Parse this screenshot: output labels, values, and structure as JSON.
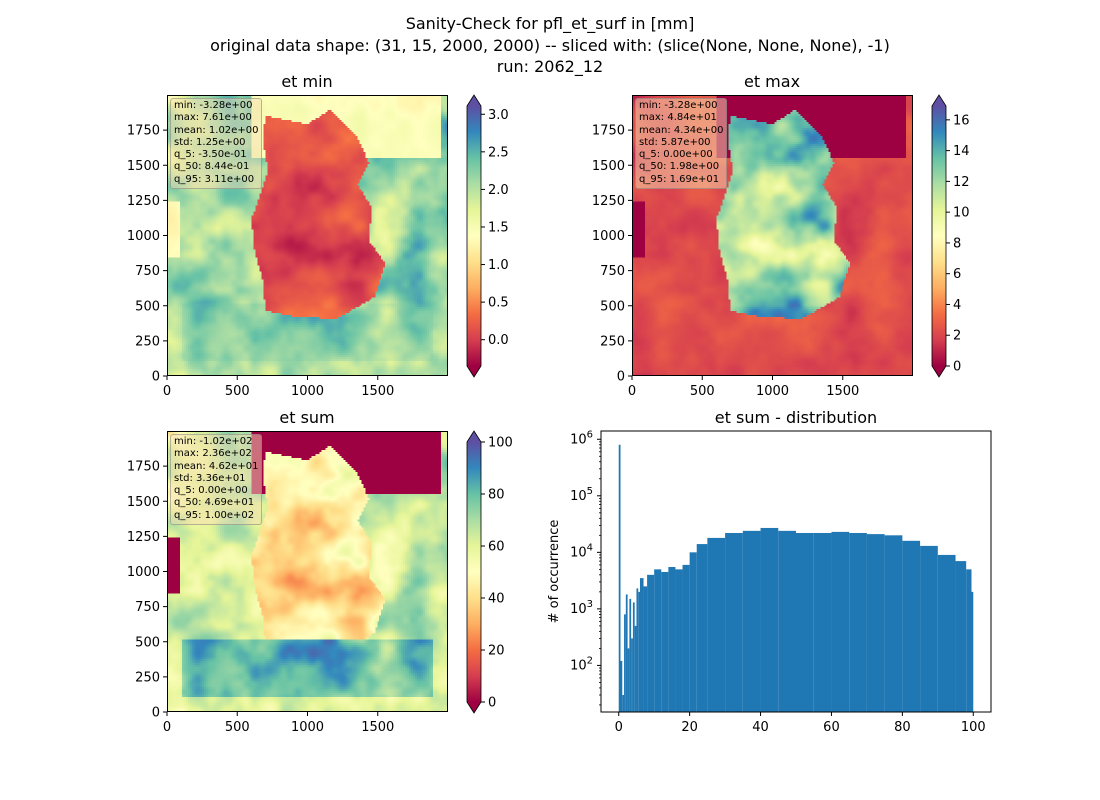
{
  "figure": {
    "title_lines": [
      "Sanity-Check for pfl_et_surf in [mm]",
      "original data shape: (31, 15, 2000, 2000) -- sliced with: (slice(None, None, None), -1)",
      "run: 2062_12"
    ]
  },
  "panels": [
    {
      "key": "et_min",
      "title": "et min",
      "stats": [
        "min: -3.28e+00",
        "max: 7.61e+00",
        "mean: 1.02e+00",
        "std: 1.25e+00",
        "q_5: -3.50e-01",
        "q_50: 8.44e-01",
        "q_95: 3.11e+00"
      ],
      "colorbar": {
        "cmap": "Spectral",
        "vmin": -0.35,
        "vmax": 3.11,
        "ticks": [
          0.0,
          0.5,
          1.0,
          1.5,
          2.0,
          2.5,
          3.0
        ],
        "tick_labels": [
          "0.0",
          "0.5",
          "1.0",
          "1.5",
          "2.0",
          "2.5",
          "3.0"
        ]
      }
    },
    {
      "key": "et_max",
      "title": "et max",
      "stats": [
        "min: -3.28e+00",
        "max: 4.84e+01",
        "mean: 4.34e+00",
        "std: 5.87e+00",
        "q_5: 0.00e+00",
        "q_50: 1.98e+00",
        "q_95: 1.69e+01"
      ],
      "colorbar": {
        "cmap": "Spectral",
        "vmin": 0,
        "vmax": 16.9,
        "ticks": [
          0,
          2,
          4,
          6,
          8,
          10,
          12,
          14,
          16
        ],
        "tick_labels": [
          "0",
          "2",
          "4",
          "6",
          "8",
          "10",
          "12",
          "14",
          "16"
        ]
      }
    },
    {
      "key": "et_sum",
      "title": "et sum",
      "stats": [
        "min: -1.02e+02",
        "max: 2.36e+02",
        "mean: 4.62e+01",
        "std: 3.36e+01",
        "q_5: 0.00e+00",
        "q_50: 4.69e+01",
        "q_95: 1.00e+02"
      ],
      "colorbar": {
        "cmap": "Spectral",
        "vmin": 0,
        "vmax": 100,
        "ticks": [
          0,
          20,
          40,
          60,
          80,
          100
        ],
        "tick_labels": [
          "0",
          "20",
          "40",
          "60",
          "80",
          "100"
        ]
      }
    }
  ],
  "map_axes": {
    "x_ticks": [
      0,
      500,
      1000,
      1500
    ],
    "x_tick_labels": [
      "0",
      "500",
      "1000",
      "1500"
    ],
    "y_ticks": [
      0,
      250,
      500,
      750,
      1000,
      1250,
      1500,
      1750
    ],
    "y_tick_labels": [
      "0",
      "250",
      "500",
      "750",
      "1000",
      "1250",
      "1500",
      "1750"
    ],
    "xlim": [
      0,
      2000
    ],
    "ylim": [
      0,
      2000
    ]
  },
  "chart_data": {
    "type": "bar",
    "title": "et sum - distribution",
    "ylabel": "# of occurrence",
    "xlabel": "",
    "y_scale": "log",
    "xlim": [
      -5,
      105
    ],
    "ylim": [
      15,
      1400000
    ],
    "x_ticks": [
      0,
      20,
      40,
      60,
      80,
      100
    ],
    "x_tick_labels": [
      "0",
      "20",
      "40",
      "60",
      "80",
      "100"
    ],
    "y_ticks": [
      100,
      1000,
      10000,
      100000,
      1000000
    ],
    "y_tick_labels": [
      "10^2",
      "10^3",
      "10^4",
      "10^5",
      "10^6"
    ],
    "bin_width": 0.5,
    "bar_color": "#1f77b4",
    "bins": [
      {
        "x": 0.0,
        "count": 800000
      },
      {
        "x": 0.5,
        "count": 120
      },
      {
        "x": 1.0,
        "count": 30
      },
      {
        "x": 1.5,
        "count": 800
      },
      {
        "x": 2.0,
        "count": 1800
      },
      {
        "x": 2.5,
        "count": 200
      },
      {
        "x": 3.0,
        "count": 1500
      },
      {
        "x": 3.5,
        "count": 300
      },
      {
        "x": 4.0,
        "count": 1300
      },
      {
        "x": 4.5,
        "count": 500
      },
      {
        "x": 5.0,
        "count": 2300
      },
      {
        "x": 5.5,
        "count": 2000
      },
      {
        "x": 6.0,
        "count": 3500
      },
      {
        "x": 7.0,
        "count": 2500
      },
      {
        "x": 8.0,
        "count": 4000
      },
      {
        "x": 10.0,
        "count": 5000
      },
      {
        "x": 12.0,
        "count": 4500
      },
      {
        "x": 14.0,
        "count": 5500
      },
      {
        "x": 16.0,
        "count": 5000
      },
      {
        "x": 18.0,
        "count": 6000
      },
      {
        "x": 20.0,
        "count": 10000
      },
      {
        "x": 22.0,
        "count": 14000
      },
      {
        "x": 25.0,
        "count": 18000
      },
      {
        "x": 30.0,
        "count": 22000
      },
      {
        "x": 35.0,
        "count": 24000
      },
      {
        "x": 40.0,
        "count": 27000
      },
      {
        "x": 45.0,
        "count": 24000
      },
      {
        "x": 50.0,
        "count": 22000
      },
      {
        "x": 55.0,
        "count": 22000
      },
      {
        "x": 60.0,
        "count": 23000
      },
      {
        "x": 65.0,
        "count": 22000
      },
      {
        "x": 70.0,
        "count": 21000
      },
      {
        "x": 75.0,
        "count": 20000
      },
      {
        "x": 80.0,
        "count": 16000
      },
      {
        "x": 85.0,
        "count": 13000
      },
      {
        "x": 90.0,
        "count": 9000
      },
      {
        "x": 95.0,
        "count": 7000
      },
      {
        "x": 98.0,
        "count": 5000
      },
      {
        "x": 99.5,
        "count": 2000
      }
    ]
  }
}
